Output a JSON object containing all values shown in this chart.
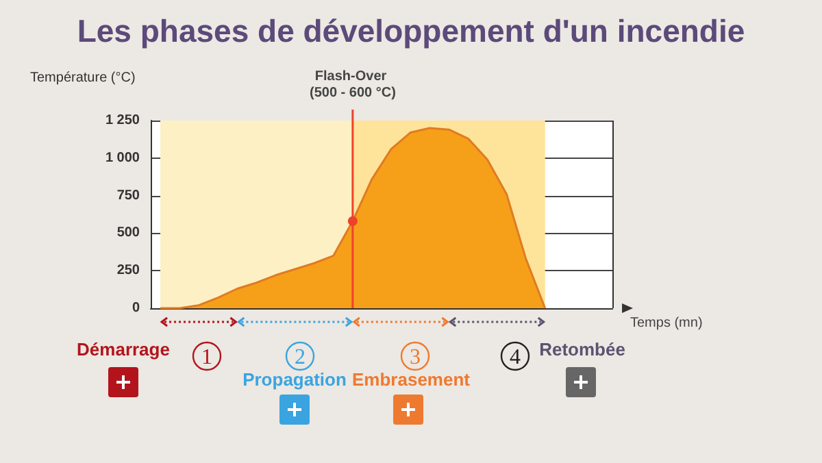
{
  "chart_data": {
    "type": "area",
    "title": "Les phases de développement d'un incendie",
    "ylabel": "Température (°C)",
    "categories": [
      null,
      null,
      null,
      null,
      null,
      null,
      null,
      null,
      null,
      null,
      null,
      null,
      null,
      null,
      null,
      null,
      null,
      null,
      null,
      null,
      null
    ],
    "series": [
      {
        "color": "#f6a01a",
        "values": [
          0,
          0,
          20,
          70,
          130,
          170,
          220,
          260,
          300,
          350,
          580,
          860,
          1060,
          1170,
          1200,
          1190,
          1130,
          990,
          760,
          330,
          0
        ]
      }
    ],
    "ylim": [
      0,
      1250
    ],
    "yticks": [
      0,
      250,
      500,
      750,
      {
        "value": 1000,
        "label": "1 000"
      },
      {
        "value": 1250,
        "label": "1 250"
      }
    ],
    "grid": true,
    "marker": "none",
    "annotations": [
      "Temps (mn)",
      "Démarrage",
      "1",
      "Propagation",
      "2",
      "Embrasement",
      "3",
      "Retombée",
      "4",
      "Flash-Over (500 - 600 °C)"
    ]
  }
}
